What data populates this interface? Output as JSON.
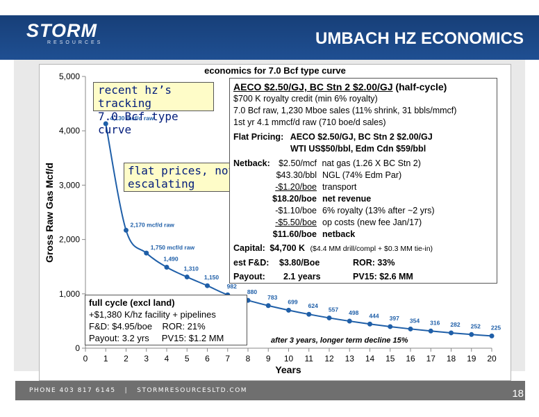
{
  "header": {
    "logo_text": "STORM",
    "logo_sub": "RESOURCES",
    "title": "UMBACH HZ ECONOMICS"
  },
  "footer": {
    "contact": "PHONE 403 817 6145   |   STORMRESOURCESLTD.COM",
    "page_number": "18"
  },
  "chart_data": {
    "type": "line",
    "title": "economics for 7.0 Bcf type curve",
    "xlabel": "Years",
    "ylabel": "Gross Raw Gas Mcf/d",
    "xlim": [
      0,
      20
    ],
    "ylim": [
      0,
      5000
    ],
    "x_ticks": [
      "0",
      "1",
      "2",
      "3",
      "4",
      "5",
      "6",
      "7",
      "8",
      "9",
      "10",
      "11",
      "12",
      "13",
      "14",
      "15",
      "16",
      "17",
      "18",
      "19",
      "20"
    ],
    "y_ticks": [
      "0",
      "1,000",
      "2,000",
      "3,000",
      "4,000",
      "5,000"
    ],
    "grid": false,
    "line_color": "#1f5fa8",
    "series": [
      {
        "name": "",
        "points": [
          {
            "x": 1,
            "y": 4130,
            "label": "4,130  mcf/d raw"
          },
          {
            "x": 2,
            "y": 2170,
            "label": "2,170 mcf/d raw"
          },
          {
            "x": 3,
            "y": 1750,
            "label": "1,750 mcf/d raw"
          },
          {
            "x": 4,
            "y": 1490,
            "label": "1,490"
          },
          {
            "x": 5,
            "y": 1310,
            "label": "1,310"
          },
          {
            "x": 6,
            "y": 1150,
            "label": "1,150"
          },
          {
            "x": 7,
            "y": 982,
            "label": "982"
          },
          {
            "x": 8,
            "y": 880,
            "label": "880"
          },
          {
            "x": 9,
            "y": 783,
            "label": "783"
          },
          {
            "x": 10,
            "y": 699,
            "label": "699"
          },
          {
            "x": 11,
            "y": 624,
            "label": "624"
          },
          {
            "x": 12,
            "y": 557,
            "label": "557"
          },
          {
            "x": 13,
            "y": 498,
            "label": "498"
          },
          {
            "x": 14,
            "y": 444,
            "label": "444"
          },
          {
            "x": 15,
            "y": 397,
            "label": "397"
          },
          {
            "x": 16,
            "y": 354,
            "label": "354"
          },
          {
            "x": 17,
            "y": 316,
            "label": "316"
          },
          {
            "x": 18,
            "y": 282,
            "label": "282"
          },
          {
            "x": 19,
            "y": 252,
            "label": "252"
          },
          {
            "x": 20,
            "y": 225,
            "label": "225"
          }
        ]
      }
    ],
    "annotations": {
      "tracking": [
        "recent hz’s tracking",
        "7.0 Bcf type curve"
      ],
      "flat": [
        "flat prices, not",
        "escalating"
      ],
      "decline": "after 3 years, longer term decline 15%"
    }
  },
  "economics": {
    "heading_prices": "AECO $2.50/GJ, BC Stn 2 $2.00/GJ",
    "heading_suffix": " (half-cycle)",
    "line1": "$700 K royalty credit (min 6% royalty)",
    "line2": "7.0 Bcf raw, 1,230 Mboe sales (11% shrink, 31 bbls/mmcf)",
    "line3": "1st yr 4.1 mmcf/d raw (710 boe/d sales)",
    "flat_label": "Flat Pricing:",
    "flat_1": "AECO $2.50/GJ, BC Stn 2 $2.00/GJ",
    "flat_2": "WTI US$50/bbl, Edm Cdn $59/bbl",
    "netback_label": "Netback:",
    "netback": [
      {
        "amount": "$2.50/mcf",
        "desc": "nat gas (1.26 X BC Stn 2)"
      },
      {
        "amount": "$43.30/bbl",
        "desc": "NGL (74% Edm Par)"
      },
      {
        "amount": "-$1.20/boe",
        "desc": "transport"
      },
      {
        "amount": "$18.20/boe",
        "desc": "net revenue"
      },
      {
        "amount": "-$1.10/boe",
        "desc": "6% royalty (13% after ~2 yrs)"
      },
      {
        "amount": "-$5.50/boe",
        "desc": "op costs (new fee Jan/17)"
      },
      {
        "amount": "$11.60/boe",
        "desc": "netback"
      }
    ],
    "capital_label": "Capital:",
    "capital_value": "$4,700 K",
    "capital_note": "($4.4 MM drill/compl + $0.3 MM tie-in)",
    "fd_label": "est F&D:",
    "fd_value": "$3.80/Boe",
    "ror_label": "ROR: 33%",
    "payout_label": "Payout:",
    "payout_value": "2.1 years",
    "pv_label": "PV15: $2.6 MM"
  },
  "full_cycle": {
    "title": "full cycle (excl land)",
    "line1": "+$1,380 K/hz facility + pipelines",
    "line2": "F&D: $4.95/boe    ROR: 21%",
    "line3": "Payout: 3.2 yrs     PV15: $1.2 MM"
  }
}
